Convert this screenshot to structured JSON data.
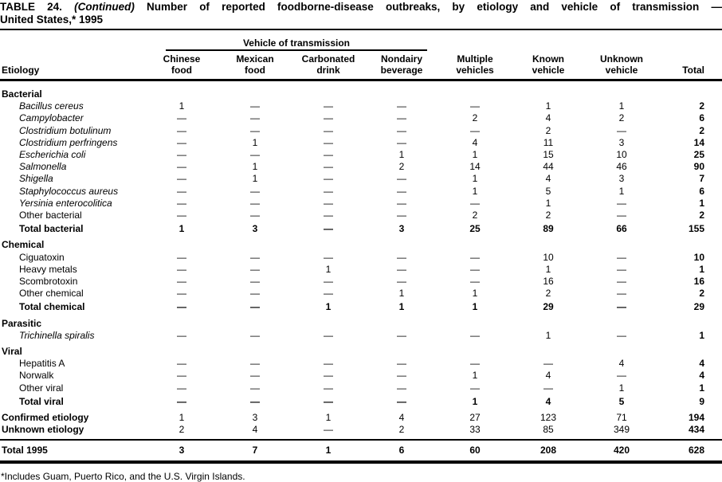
{
  "title": {
    "label": "TABLE 24.",
    "continued": "(Continued)",
    "text": "Number of reported foodborne-disease outbreaks, by etiology and vehicle of transmission —",
    "line2": "United States,* 1995"
  },
  "header": {
    "spanner": "Vehicle of transmission",
    "etiology": "Etiology",
    "columns": [
      {
        "l1": "Chinese",
        "l2": "food"
      },
      {
        "l1": "Mexican",
        "l2": "food"
      },
      {
        "l1": "Carbonated",
        "l2": "drink"
      },
      {
        "l1": "Nondairy",
        "l2": "beverage"
      },
      {
        "l1": "Multiple",
        "l2": "vehicles"
      },
      {
        "l1": "Known",
        "l2": "vehicle"
      },
      {
        "l1": "Unknown",
        "l2": "vehicle"
      },
      {
        "l1": "",
        "l2": "Total"
      }
    ]
  },
  "rows": [
    {
      "type": "section",
      "italic": false,
      "label": "Bacterial",
      "values": [
        "",
        "",
        "",
        "",
        "",
        "",
        "",
        ""
      ]
    },
    {
      "type": "item",
      "italic": true,
      "label": "Bacillus cereus",
      "values": [
        "1",
        "—",
        "—",
        "—",
        "—",
        "1",
        "1",
        "2"
      ]
    },
    {
      "type": "item",
      "italic": true,
      "label": "Campylobacter",
      "values": [
        "—",
        "—",
        "—",
        "—",
        "2",
        "4",
        "2",
        "6"
      ]
    },
    {
      "type": "item",
      "italic": true,
      "label": "Clostridium botulinum",
      "values": [
        "—",
        "—",
        "—",
        "—",
        "—",
        "2",
        "—",
        "2"
      ]
    },
    {
      "type": "item",
      "italic": true,
      "label": "Clostridium perfringens",
      "values": [
        "—",
        "1",
        "—",
        "—",
        "4",
        "11",
        "3",
        "14"
      ]
    },
    {
      "type": "item",
      "italic": true,
      "label": "Escherichia coli",
      "values": [
        "—",
        "—",
        "—",
        "1",
        "1",
        "15",
        "10",
        "25"
      ]
    },
    {
      "type": "item",
      "italic": true,
      "label": "Salmonella",
      "values": [
        "—",
        "1",
        "—",
        "2",
        "14",
        "44",
        "46",
        "90"
      ]
    },
    {
      "type": "item",
      "italic": true,
      "label": "Shigella",
      "values": [
        "—",
        "1",
        "—",
        "—",
        "1",
        "4",
        "3",
        "7"
      ]
    },
    {
      "type": "item",
      "italic": true,
      "label": "Staphylococcus aureus",
      "values": [
        "—",
        "—",
        "—",
        "—",
        "1",
        "5",
        "1",
        "6"
      ]
    },
    {
      "type": "item",
      "italic": true,
      "label": "Yersinia enterocolitica",
      "values": [
        "—",
        "—",
        "—",
        "—",
        "—",
        "1",
        "—",
        "1"
      ]
    },
    {
      "type": "item",
      "italic": false,
      "label": "Other bacterial",
      "values": [
        "—",
        "—",
        "—",
        "—",
        "2",
        "2",
        "—",
        "2"
      ]
    },
    {
      "type": "total",
      "italic": false,
      "label": "Total bacterial",
      "values": [
        "1",
        "3",
        "—",
        "3",
        "25",
        "89",
        "66",
        "155"
      ]
    },
    {
      "type": "section",
      "italic": false,
      "label": "Chemical",
      "values": [
        "",
        "",
        "",
        "",
        "",
        "",
        "",
        ""
      ]
    },
    {
      "type": "item",
      "italic": false,
      "label": "Ciguatoxin",
      "values": [
        "—",
        "—",
        "—",
        "—",
        "—",
        "10",
        "—",
        "10"
      ]
    },
    {
      "type": "item",
      "italic": false,
      "label": "Heavy metals",
      "values": [
        "—",
        "—",
        "1",
        "—",
        "—",
        "1",
        "—",
        "1"
      ]
    },
    {
      "type": "item",
      "italic": false,
      "label": "Scombrotoxin",
      "values": [
        "—",
        "—",
        "—",
        "—",
        "—",
        "16",
        "—",
        "16"
      ]
    },
    {
      "type": "item",
      "italic": false,
      "label": "Other chemical",
      "values": [
        "—",
        "—",
        "—",
        "1",
        "1",
        "2",
        "—",
        "2"
      ]
    },
    {
      "type": "total",
      "italic": false,
      "label": "Total chemical",
      "values": [
        "—",
        "—",
        "1",
        "1",
        "1",
        "29",
        "—",
        "29"
      ]
    },
    {
      "type": "section",
      "italic": false,
      "label": "Parasitic",
      "values": [
        "",
        "",
        "",
        "",
        "",
        "",
        "",
        ""
      ]
    },
    {
      "type": "item",
      "italic": true,
      "label": "Trichinella spiralis",
      "values": [
        "—",
        "—",
        "—",
        "—",
        "—",
        "1",
        "—",
        "1"
      ]
    },
    {
      "type": "section",
      "italic": false,
      "label": "Viral",
      "values": [
        "",
        "",
        "",
        "",
        "",
        "",
        "",
        ""
      ]
    },
    {
      "type": "item",
      "italic": false,
      "label": "Hepatitis A",
      "values": [
        "—",
        "—",
        "—",
        "—",
        "—",
        "—",
        "4",
        "4"
      ]
    },
    {
      "type": "item",
      "italic": false,
      "label": "Norwalk",
      "values": [
        "—",
        "—",
        "—",
        "—",
        "1",
        "4",
        "—",
        "4"
      ]
    },
    {
      "type": "item",
      "italic": false,
      "label": "Other viral",
      "values": [
        "—",
        "—",
        "—",
        "—",
        "—",
        "—",
        "1",
        "1"
      ]
    },
    {
      "type": "total",
      "italic": false,
      "label": "Total viral",
      "values": [
        "—",
        "—",
        "—",
        "—",
        "1",
        "4",
        "5",
        "9"
      ]
    },
    {
      "type": "summary",
      "italic": false,
      "label": "Confirmed etiology",
      "values": [
        "1",
        "3",
        "1",
        "4",
        "27",
        "123",
        "71",
        "194"
      ]
    },
    {
      "type": "summary",
      "italic": false,
      "label": "Unknown etiology",
      "values": [
        "2",
        "4",
        "—",
        "2",
        "33",
        "85",
        "349",
        "434"
      ]
    },
    {
      "type": "grand",
      "italic": false,
      "label": "Total 1995",
      "values": [
        "3",
        "7",
        "1",
        "6",
        "60",
        "208",
        "420",
        "628"
      ]
    }
  ],
  "footnote": "*Includes Guam, Puerto Rico, and the U.S. Virgin Islands."
}
